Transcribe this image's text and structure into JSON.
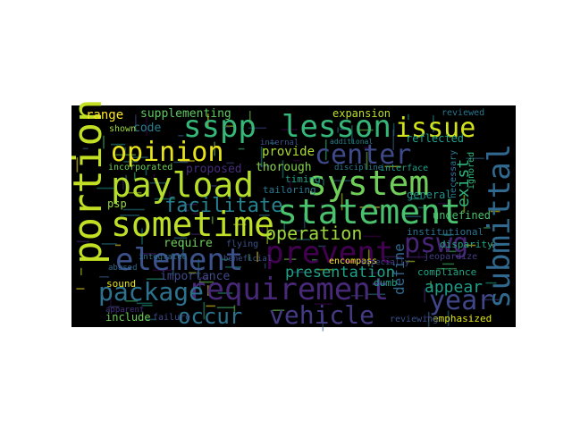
{
  "background_color": "#000000",
  "words": [
    {
      "text": "sspp",
      "color": "#35b779"
    },
    {
      "text": "lesson",
      "color": "#35b779"
    },
    {
      "text": "issue",
      "color": "#d2e21b"
    },
    {
      "text": "portion",
      "color": "#c2df23"
    },
    {
      "text": "opinion",
      "color": "#e7e419"
    },
    {
      "text": "center",
      "color": "#3e4a89"
    },
    {
      "text": "payload",
      "color": "#b5de2b"
    },
    {
      "text": "system",
      "color": "#6ece58"
    },
    {
      "text": "sometime",
      "color": "#bddf26"
    },
    {
      "text": "statement",
      "color": "#4ac16d"
    },
    {
      "text": "submittal",
      "color": "#31688e"
    },
    {
      "text": "pswg",
      "color": "#482475"
    },
    {
      "text": "prevent",
      "color": "#440154"
    },
    {
      "text": "element",
      "color": "#3b528b"
    },
    {
      "text": "operation",
      "color": "#9dd93b"
    },
    {
      "text": "requirement",
      "color": "#482878"
    },
    {
      "text": "package",
      "color": "#2c728e"
    },
    {
      "text": "year",
      "color": "#3f4788"
    },
    {
      "text": "occur",
      "color": "#2c738e"
    },
    {
      "text": "vehicle",
      "color": "#443a83"
    },
    {
      "text": "facilitate",
      "color": "#26828e"
    },
    {
      "text": "presentation",
      "color": "#1fa188"
    },
    {
      "text": "appear",
      "color": "#1f9e89"
    },
    {
      "text": "define",
      "color": "#31688e"
    },
    {
      "text": "exist",
      "color": "#2db27d"
    },
    {
      "text": "range",
      "color": "#fde725"
    },
    {
      "text": "supplementing",
      "color": "#5ec962"
    },
    {
      "text": "code",
      "color": "#26828e"
    },
    {
      "text": "shown",
      "color": "#a0da39"
    },
    {
      "text": "expansion",
      "color": "#bddf26"
    },
    {
      "text": "reviewed",
      "color": "#2a788e"
    },
    {
      "text": "reflected",
      "color": "#1f9e89"
    },
    {
      "text": "provide",
      "color": "#addc30"
    },
    {
      "text": "proposed",
      "color": "#472d7b"
    },
    {
      "text": "thorough",
      "color": "#84d44b"
    },
    {
      "text": "incorporated",
      "color": "#6ece58"
    },
    {
      "text": "timing",
      "color": "#1fa188"
    },
    {
      "text": "tailoring",
      "color": "#2a788e"
    },
    {
      "text": "general",
      "color": "#21918c"
    },
    {
      "text": "ignored",
      "color": "#2fb47c"
    },
    {
      "text": "undefined",
      "color": "#4ac16d"
    },
    {
      "text": "psp",
      "color": "#95d840"
    },
    {
      "text": "require",
      "color": "#6ece58"
    },
    {
      "text": "flying",
      "color": "#3b528b"
    },
    {
      "text": "institutional",
      "color": "#2c728e"
    },
    {
      "text": "encompass",
      "color": "#fde725"
    },
    {
      "text": "compliance",
      "color": "#21a585"
    },
    {
      "text": "importance",
      "color": "#3e4a89"
    },
    {
      "text": "sound",
      "color": "#e5e419"
    },
    {
      "text": "include",
      "color": "#6ece58"
    },
    {
      "text": "jeopardize",
      "color": "#433e85"
    },
    {
      "text": "emphasized",
      "color": "#dde318"
    },
    {
      "text": "abused",
      "color": "#31688e"
    },
    {
      "text": "apparent",
      "color": "#46337f"
    },
    {
      "text": "integrated",
      "color": "#2c728e"
    },
    {
      "text": "failure",
      "color": "#3e4989"
    },
    {
      "text": "reviewing",
      "color": "#3b528b"
    },
    {
      "text": "interface",
      "color": "#1f9e89"
    },
    {
      "text": "dumb",
      "color": "#1fa188"
    },
    {
      "text": "beneficial",
      "color": "#3b528b"
    },
    {
      "text": "discipline",
      "color": "#2a788e"
    },
    {
      "text": "internal",
      "color": "#3b528b"
    },
    {
      "text": "necessary",
      "color": "#287c8e"
    },
    {
      "text": "disparity",
      "color": "#22a884"
    },
    {
      "text": "especially",
      "color": "#3e4989"
    },
    {
      "text": "additional",
      "color": "#26828e"
    }
  ],
  "filler_colors": [
    "#440154",
    "#482475",
    "#414487",
    "#355f8d",
    "#2a788e",
    "#21918c",
    "#22a884",
    "#44bf70",
    "#7ad151",
    "#bddf26",
    "#fde725"
  ]
}
